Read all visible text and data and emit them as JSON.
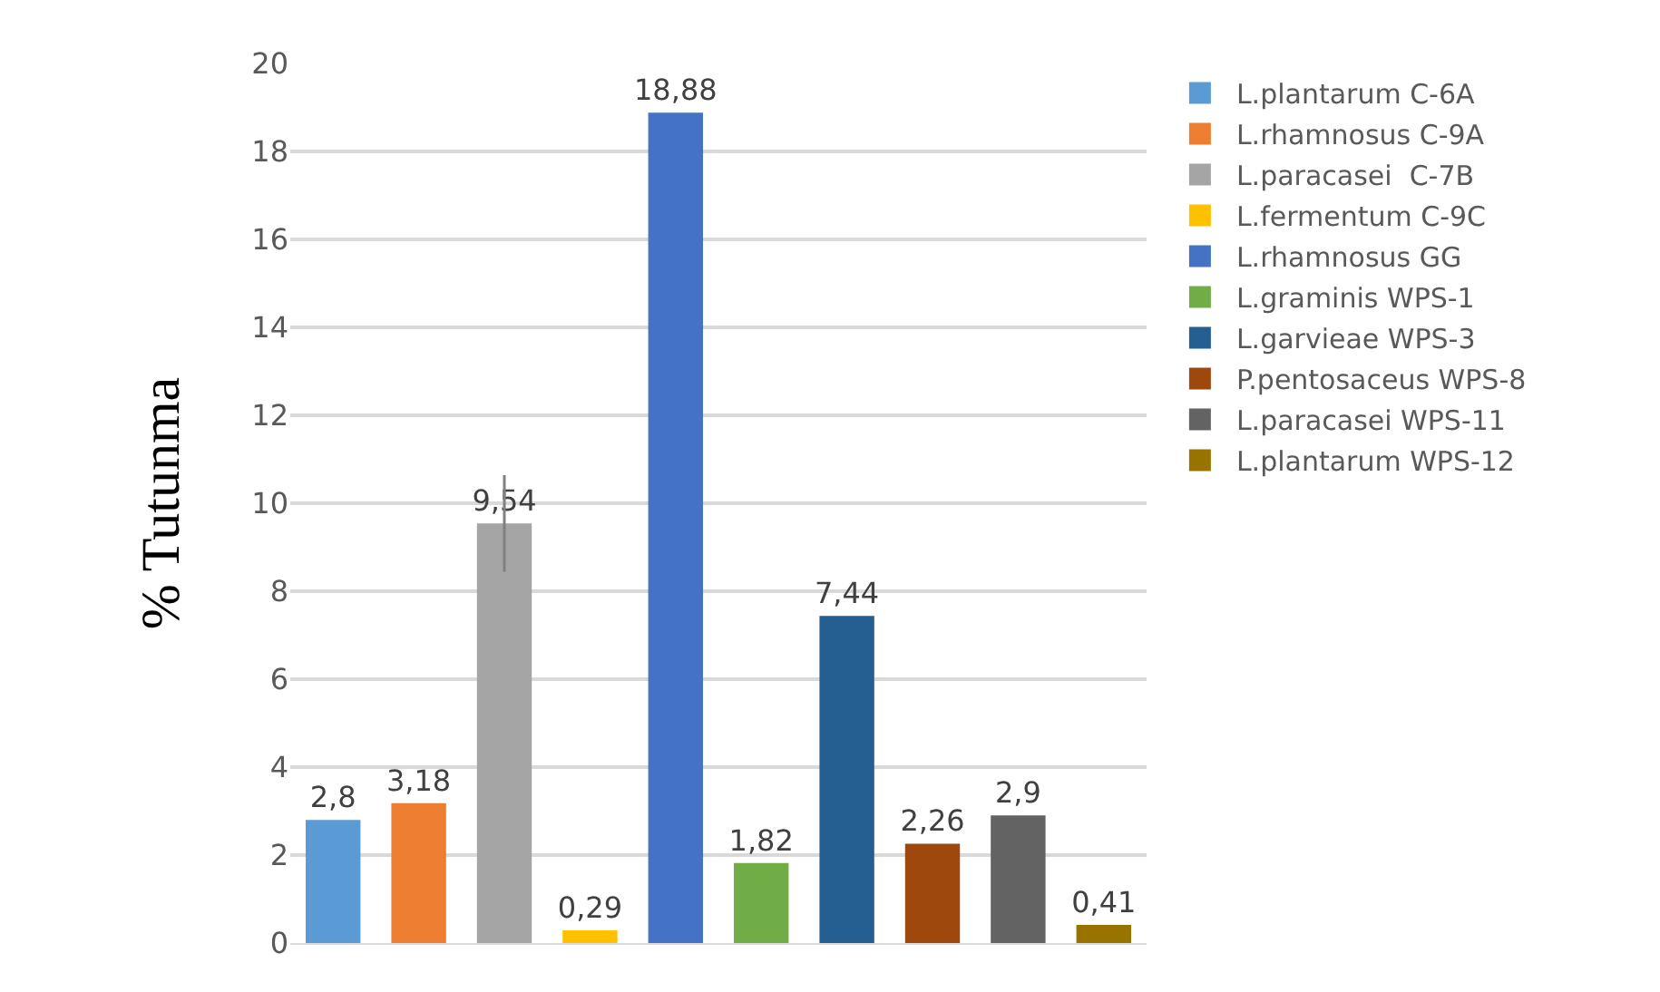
{
  "chart_data": {
    "type": "bar",
    "ylabel": "% Tutunma",
    "categories": [
      null,
      null,
      null,
      null,
      null,
      null,
      null,
      null,
      null,
      null
    ],
    "ylim": [
      0,
      20
    ],
    "yticks": [
      0,
      2,
      4,
      6,
      8,
      10,
      12,
      14,
      16,
      18,
      20
    ],
    "grid": "y",
    "legend": "right",
    "series": [
      {
        "name": "L.plantarum C-6A",
        "color": "#5b9bd5",
        "values": [
          2.8,
          null,
          null,
          null,
          null,
          null,
          null,
          null,
          null,
          null
        ],
        "value_labels": [
          "2,8",
          null,
          null,
          null,
          null,
          null,
          null,
          null,
          null,
          null
        ]
      },
      {
        "name": "L.rhamnosus C-9A",
        "color": "#ed7d31",
        "values": [
          null,
          3.18,
          null,
          null,
          null,
          null,
          null,
          null,
          null,
          null
        ],
        "value_labels": [
          null,
          "3,18",
          null,
          null,
          null,
          null,
          null,
          null,
          null,
          null
        ]
      },
      {
        "name": "L.paracasei  C-7B",
        "color": "#a5a5a5",
        "values": [
          null,
          null,
          9.54,
          null,
          null,
          null,
          null,
          null,
          null,
          null
        ],
        "value_labels": [
          null,
          null,
          "9,54",
          null,
          null,
          null,
          null,
          null,
          null,
          null
        ],
        "errors": [
          null,
          null,
          1.1,
          null,
          null,
          null,
          null,
          null,
          null,
          null
        ]
      },
      {
        "name": "L.fermentum C-9C",
        "color": "#ffc000",
        "values": [
          null,
          null,
          null,
          0.29,
          null,
          null,
          null,
          null,
          null,
          null
        ],
        "value_labels": [
          null,
          null,
          null,
          "0,29",
          null,
          null,
          null,
          null,
          null,
          null
        ]
      },
      {
        "name": "L.rhamnosus GG",
        "color": "#4472c4",
        "values": [
          null,
          null,
          null,
          null,
          18.88,
          null,
          null,
          null,
          null,
          null
        ],
        "value_labels": [
          null,
          null,
          null,
          null,
          "18,88",
          null,
          null,
          null,
          null,
          null
        ]
      },
      {
        "name": "L.graminis WPS-1",
        "color": "#70ad47",
        "values": [
          null,
          null,
          null,
          null,
          null,
          1.82,
          null,
          null,
          null,
          null
        ],
        "value_labels": [
          null,
          null,
          null,
          null,
          null,
          "1,82",
          null,
          null,
          null,
          null
        ]
      },
      {
        "name": "L.garvieae WPS-3",
        "color": "#255e91",
        "values": [
          null,
          null,
          null,
          null,
          null,
          null,
          7.44,
          null,
          null,
          null
        ],
        "value_labels": [
          null,
          null,
          null,
          null,
          null,
          null,
          "7,44",
          null,
          null,
          null
        ]
      },
      {
        "name": "P.pentosaceus WPS-8",
        "color": "#9e480e",
        "values": [
          null,
          null,
          null,
          null,
          null,
          null,
          null,
          2.26,
          null,
          null
        ],
        "value_labels": [
          null,
          null,
          null,
          null,
          null,
          null,
          null,
          "2,26",
          null,
          null
        ]
      },
      {
        "name": "L.paracasei WPS-11",
        "color": "#636363",
        "values": [
          null,
          null,
          null,
          null,
          null,
          null,
          null,
          null,
          2.9,
          null
        ],
        "value_labels": [
          null,
          null,
          null,
          null,
          null,
          null,
          null,
          null,
          "2,9",
          null
        ]
      },
      {
        "name": "L.plantarum WPS-12",
        "color": "#997300",
        "values": [
          null,
          null,
          null,
          null,
          null,
          null,
          null,
          null,
          null,
          0.41
        ],
        "value_labels": [
          null,
          null,
          null,
          null,
          null,
          null,
          null,
          null,
          null,
          "0,41"
        ]
      }
    ]
  }
}
